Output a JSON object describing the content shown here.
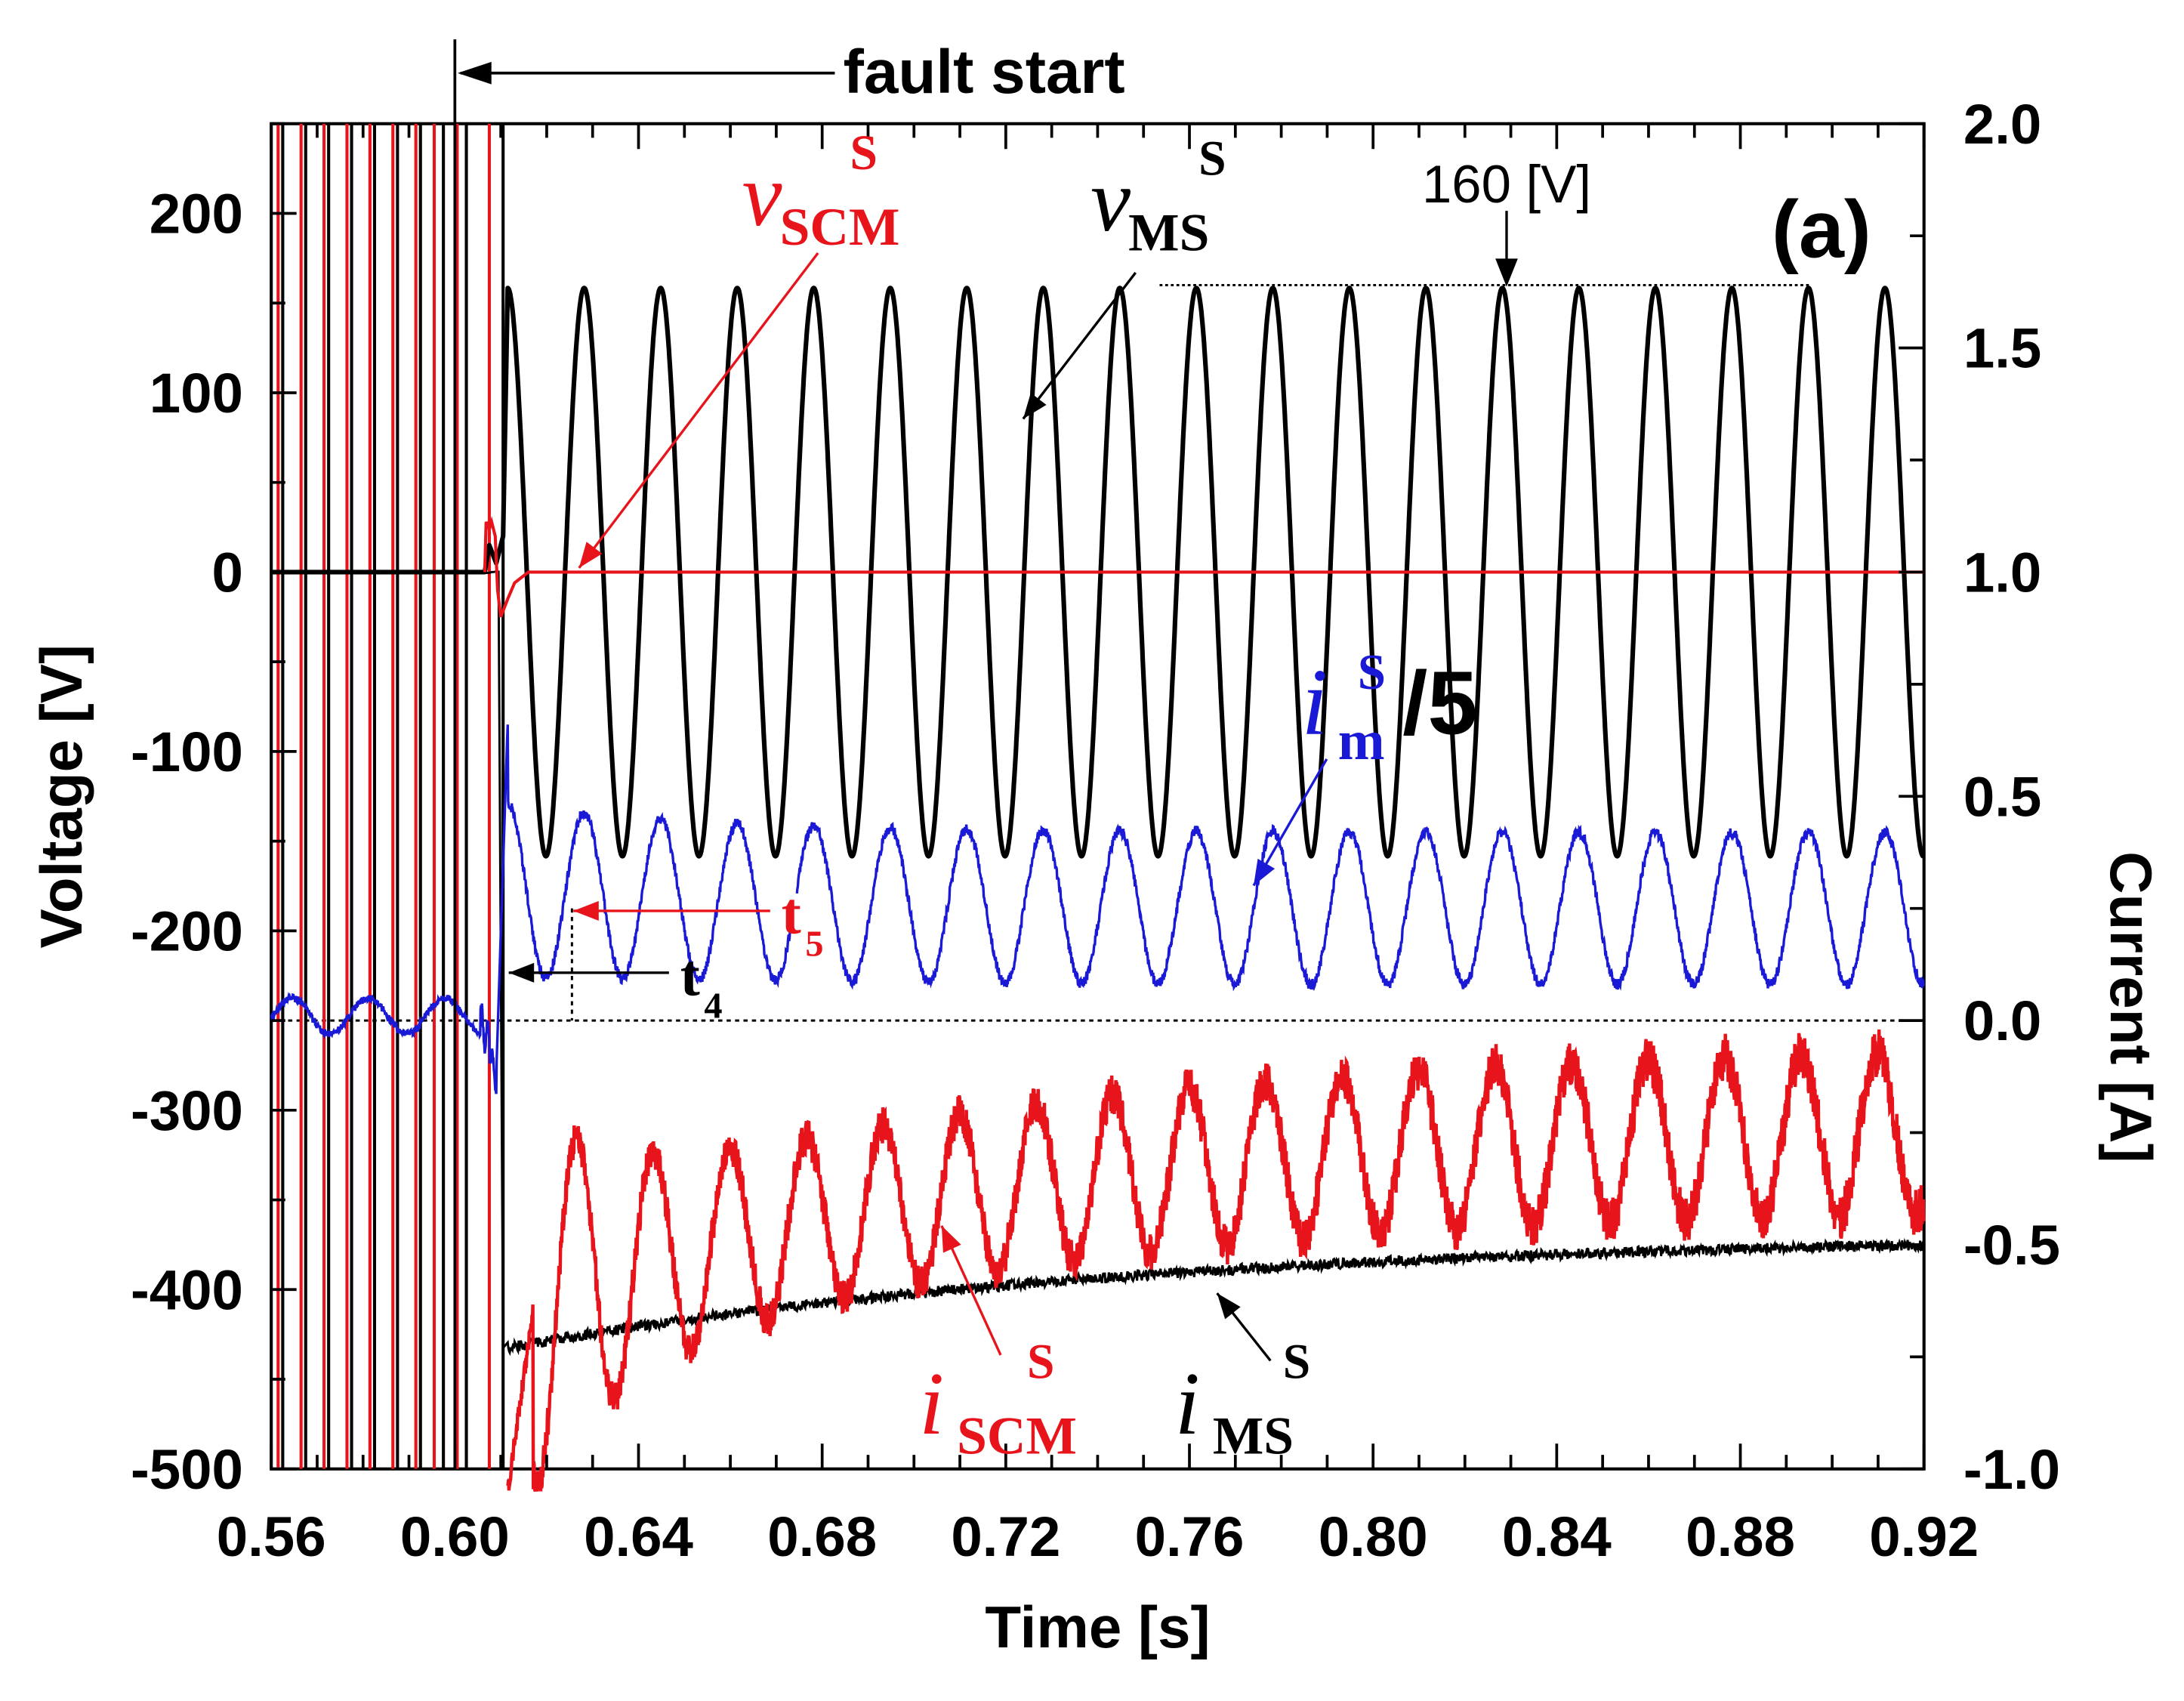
{
  "chart_data": {
    "type": "line",
    "panel_label": "(a)",
    "xlabel": "Time [s]",
    "ylabel_left": "Voltage [V]",
    "ylabel_right": "Current [A]",
    "xlim": [
      0.56,
      0.92
    ],
    "ylim_left": [
      -500,
      250
    ],
    "ylim_right": [
      -1.0,
      2.0
    ],
    "x_ticks": [
      "0.56",
      "0.60",
      "0.64",
      "0.68",
      "0.72",
      "0.76",
      "0.80",
      "0.84",
      "0.88",
      "0.92"
    ],
    "x_tick_values": [
      0.56,
      0.6,
      0.64,
      0.68,
      0.72,
      0.76,
      0.8,
      0.84,
      0.88,
      0.92
    ],
    "y_left_ticks": [
      "200",
      "100",
      "0",
      "-100",
      "-200",
      "-300",
      "-400",
      "-500"
    ],
    "y_left_tick_values": [
      200,
      100,
      0,
      -100,
      -200,
      -300,
      -400,
      -500
    ],
    "y_right_ticks": [
      "2.0",
      "1.5",
      "1.0",
      "0.5",
      "0.0",
      "-0.5",
      "-1.0"
    ],
    "y_right_tick_values": [
      2.0,
      1.5,
      1.0,
      0.5,
      0.0,
      -0.5,
      -1.0
    ],
    "annotations": {
      "fault_start": {
        "text": "fault start",
        "x": 0.6
      },
      "peak_label": {
        "text": "160 [V]",
        "level": 160
      },
      "t4": {
        "main": "t",
        "sub": "4",
        "x": 0.6095
      },
      "t5": {
        "main": "t",
        "sub": "5",
        "x": 0.6255
      },
      "v_scm": {
        "main": "v",
        "sub": "SCM",
        "sup": "S"
      },
      "v_ms": {
        "main": "v",
        "sub": "MS",
        "sup": "S"
      },
      "i_m": {
        "main": "i",
        "sub": "m",
        "sup": "S",
        "suffix": "/5"
      },
      "i_scm": {
        "main": "i",
        "sub": "SCM",
        "sup": "S"
      },
      "i_ms": {
        "main": "i",
        "sub": "MS",
        "sup": "S"
      }
    },
    "series": [
      {
        "name": "v_MS^S",
        "axis": "left",
        "color": "#000000",
        "amplitude": 160,
        "offset": 0,
        "frequency_hz": 60,
        "start_time": 0.6115
      },
      {
        "name": "v_SCM^S",
        "axis": "left",
        "color": "#e8141b",
        "value_after_fault": 0
      },
      {
        "name": "i_m^S/5",
        "axis": "right",
        "color": "#1a1ad6",
        "pre_fault_mean": 0.0,
        "post_fault_mean": 0.25,
        "post_fault_amplitude": 0.17,
        "frequency_hz": 60
      },
      {
        "name": "i_SCM^S",
        "axis": "right",
        "color": "#e8141b",
        "mean_start": -0.65,
        "mean_end": -0.25,
        "amplitude": 0.2,
        "frequency_hz": 60
      },
      {
        "name": "i_MS^S",
        "axis": "right",
        "color": "#000000",
        "value_start": -0.73,
        "value_end": -0.5
      }
    ],
    "pre_fault_switching_lines": {
      "red_x": [
        0.5615,
        0.5665,
        0.5715,
        0.5765,
        0.5815,
        0.5865,
        0.5915,
        0.5955,
        0.6005,
        0.6075
      ],
      "black_x": [
        0.5625,
        0.5675,
        0.5725,
        0.5775,
        0.5825,
        0.5875,
        0.5925,
        0.5975,
        0.6025,
        0.6105
      ]
    }
  }
}
